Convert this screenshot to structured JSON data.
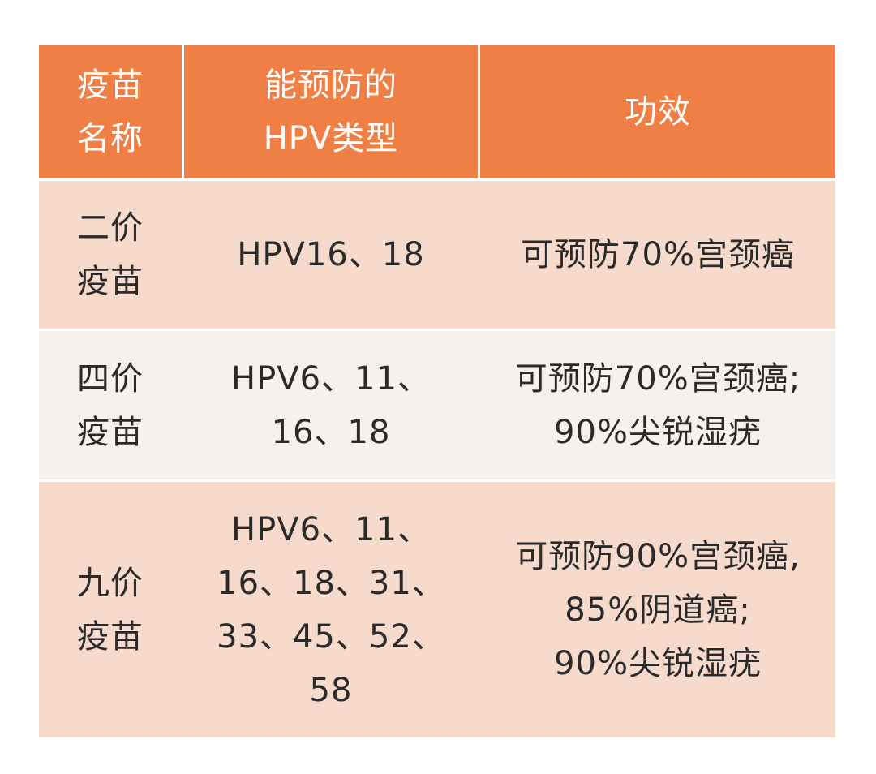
{
  "table": {
    "header": {
      "name_lines": [
        "疫苗",
        "名称"
      ],
      "types_lines": [
        "能预防的",
        "HPV类型"
      ],
      "effect_lines": [
        "功效"
      ]
    },
    "rows": [
      {
        "name_lines": [
          "二价",
          "疫苗"
        ],
        "types_lines": [
          "HPV16、18"
        ],
        "effect_lines": [
          "可预防70%宫颈癌"
        ]
      },
      {
        "name_lines": [
          "四价",
          "疫苗"
        ],
        "types_lines": [
          "HPV6、11、",
          "16、18"
        ],
        "effect_lines": [
          "可预防70%宫颈癌;",
          "90%尖锐湿疣"
        ]
      },
      {
        "name_lines": [
          "九价",
          "疫苗"
        ],
        "types_lines": [
          "HPV6、11、",
          "16、18、31、",
          "33、45、52、",
          "58"
        ],
        "effect_lines": [
          "可预防90%宫颈癌,",
          "85%阴道癌;",
          "90%尖锐湿疣"
        ]
      }
    ],
    "colors": {
      "header_bg": "#f07f45",
      "header_text": "#ffffff",
      "row_bg_odd": "#f6dacb",
      "row_bg_even": "#f7f1ee",
      "text": "#2a2a2a"
    }
  }
}
